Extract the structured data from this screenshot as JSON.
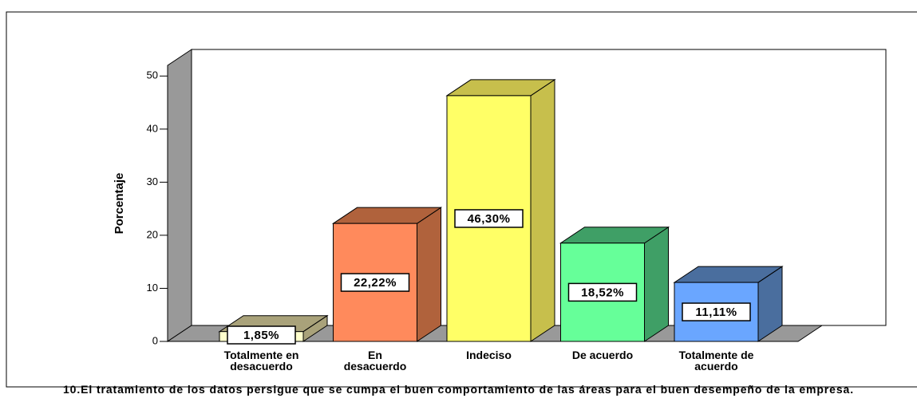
{
  "chart_data": {
    "type": "bar3d",
    "title": "10.El tratamiento de los datos persigue que se cumpa el buen comportamiento de las áreas para el buen desempeño de la empresa.",
    "ylabel": "Porcentaje",
    "categories": [
      "Totalmente en desacuerdo",
      "En desacuerdo",
      "Indeciso",
      "De acuerdo",
      "Totalmente de acuerdo"
    ],
    "values": [
      1.85,
      22.22,
      46.3,
      18.52,
      11.11
    ],
    "value_labels": [
      "1,85%",
      "22,22%",
      "46,30%",
      "18,52%",
      "11,11%"
    ],
    "colors": [
      "#ffffcc",
      "#ff8a5c",
      "#ffff66",
      "#66ff99",
      "#6aa6ff"
    ],
    "side_colors": [
      "#a9a27a",
      "#b0623c",
      "#c7bf4c",
      "#3f9f66",
      "#4a6e9e"
    ],
    "ylim": [
      0,
      52
    ],
    "yticks": [
      0,
      10,
      20,
      30,
      40,
      50
    ]
  }
}
